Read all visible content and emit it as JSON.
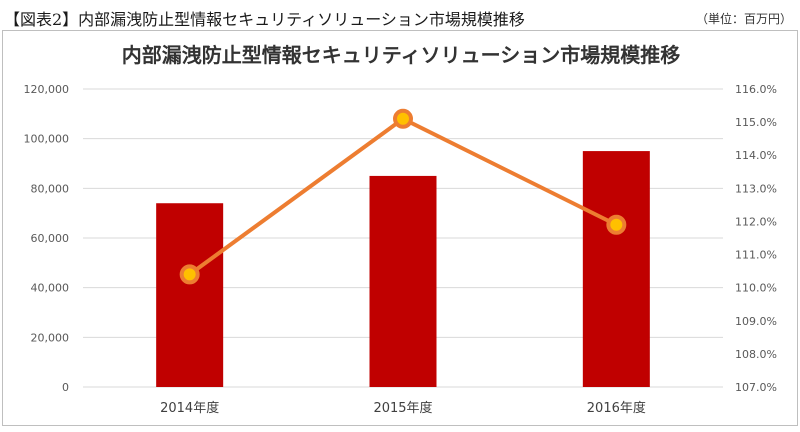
{
  "header": {
    "figure_title": "【図表2】内部漏洩防止型情報セキュリティソリューション市場規模推移",
    "unit": "（単位：百万円）"
  },
  "colors": {
    "bar": "#c00000",
    "line": "#ed7d31",
    "marker_fill": "#ffc000",
    "grid": "#d9d9d9"
  },
  "chart_data": {
    "type": "bar",
    "title": "内部漏洩防止型情報セキュリティソリューション市場規模推移",
    "categories": [
      "2014年度",
      "2015年度",
      "2016年度"
    ],
    "series": [
      {
        "type": "bar",
        "axis": "left",
        "values": [
          74000,
          85000,
          95000
        ]
      },
      {
        "type": "line",
        "axis": "right",
        "values": [
          110.4,
          115.1,
          111.9
        ]
      }
    ],
    "y_left": {
      "min": 0,
      "max": 120000,
      "ticks": [
        "0",
        "20,000",
        "40,000",
        "60,000",
        "80,000",
        "100,000",
        "120,000"
      ]
    },
    "y_right": {
      "min": 107.0,
      "max": 116.0,
      "ticks": [
        "107.0%",
        "108.0%",
        "109.0%",
        "110.0%",
        "111.0%",
        "112.0%",
        "113.0%",
        "114.0%",
        "115.0%",
        "116.0%"
      ]
    },
    "grid": true,
    "legend": "none"
  }
}
